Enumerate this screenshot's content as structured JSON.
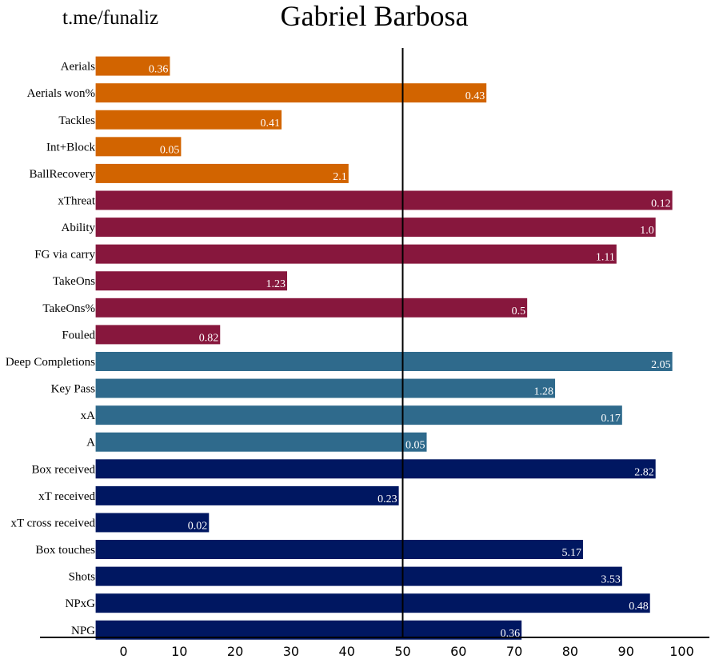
{
  "header": {
    "watermark": "t.me/funaliz",
    "title": "Gabriel Barbosa"
  },
  "colors": {
    "defensive": "#d26400",
    "possession": "#87173d",
    "creation": "#2f6a8c",
    "attacking": "#001761",
    "reference_line": "#000000"
  },
  "chart_data": {
    "type": "bar",
    "orientation": "horizontal",
    "title": "Gabriel Barbosa",
    "xlabel": "",
    "ylabel": "",
    "xlim": [
      -5,
      105
    ],
    "xticks": [
      0,
      10,
      20,
      30,
      40,
      50,
      60,
      70,
      80,
      90,
      100
    ],
    "reference_line": 50,
    "grid": false,
    "bars": [
      {
        "category": "Aerials",
        "percentile": 8.3,
        "label": "0.36",
        "group": "defensive"
      },
      {
        "category": "Aerials won%",
        "percentile": 65,
        "label": "0.43",
        "group": "defensive"
      },
      {
        "category": "Tackles",
        "percentile": 28.3,
        "label": "0.41",
        "group": "defensive"
      },
      {
        "category": "Int+Block",
        "percentile": 10.3,
        "label": "0.05",
        "group": "defensive"
      },
      {
        "category": "BallRecovery",
        "percentile": 40.3,
        "label": "2.1",
        "group": "defensive"
      },
      {
        "category": "xThreat",
        "percentile": 98.3,
        "label": "0.12",
        "group": "possession"
      },
      {
        "category": "Ability",
        "percentile": 95.3,
        "label": "1.0",
        "group": "possession"
      },
      {
        "category": "FG via carry",
        "percentile": 88.3,
        "label": "1.11",
        "group": "possession"
      },
      {
        "category": "TakeOns",
        "percentile": 29.3,
        "label": "1.23",
        "group": "possession"
      },
      {
        "category": "TakeOns%",
        "percentile": 72.3,
        "label": "0.5",
        "group": "possession"
      },
      {
        "category": "Fouled",
        "percentile": 17.3,
        "label": "0.82",
        "group": "possession"
      },
      {
        "category": "Deep Completions",
        "percentile": 98.3,
        "label": "2.05",
        "group": "creation"
      },
      {
        "category": "Key Pass",
        "percentile": 77.3,
        "label": "1.28",
        "group": "creation"
      },
      {
        "category": "xA",
        "percentile": 89.3,
        "label": "0.17",
        "group": "creation"
      },
      {
        "category": "A",
        "percentile": 54.3,
        "label": "0.05",
        "group": "creation"
      },
      {
        "category": "Box received",
        "percentile": 95.3,
        "label": "2.82",
        "group": "attacking"
      },
      {
        "category": "xT received",
        "percentile": 49.3,
        "label": "0.23",
        "group": "attacking"
      },
      {
        "category": "xT cross received",
        "percentile": 15.3,
        "label": "0.02",
        "group": "attacking"
      },
      {
        "category": "Box touches",
        "percentile": 82.3,
        "label": "5.17",
        "group": "attacking"
      },
      {
        "category": "Shots",
        "percentile": 89.3,
        "label": "3.53",
        "group": "attacking"
      },
      {
        "category": "NPxG",
        "percentile": 94.3,
        "label": "0.48",
        "group": "attacking"
      },
      {
        "category": "NPG",
        "percentile": 71.3,
        "label": "0.36",
        "group": "attacking"
      }
    ]
  }
}
